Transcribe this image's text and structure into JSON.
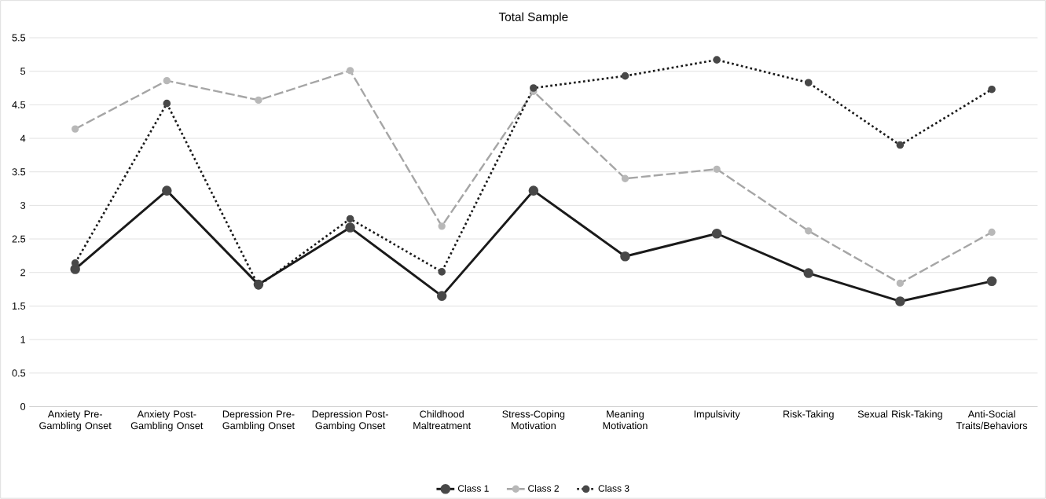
{
  "chart_data": {
    "type": "line",
    "title": "Total Sample",
    "categories": [
      "Anxiety Pre-Gambling Onset",
      "Anxiety Post-Gambling Onset",
      "Depression Pre-Gambling Onset",
      "Depression Post-Gambing Onset",
      "Childhood Maltreatment",
      "Stress-Coping Motivation",
      "Meaning Motivation",
      "Impulsivity",
      "Risk-Taking",
      "Sexual Risk-Taking",
      "Anti-Social Traits/Behaviors"
    ],
    "series": [
      {
        "name": "Class 1",
        "color": "#1a1a1a",
        "line_style": "solid",
        "values": [
          2.05,
          3.22,
          1.82,
          2.67,
          1.65,
          3.22,
          2.24,
          2.58,
          1.99,
          1.57,
          1.87
        ]
      },
      {
        "name": "Class 2",
        "color": "#a6a6a6",
        "line_style": "dashed",
        "values": [
          4.14,
          4.86,
          4.57,
          5.01,
          2.69,
          4.7,
          3.4,
          3.54,
          2.62,
          1.84,
          2.6
        ]
      },
      {
        "name": "Class 3",
        "color": "#1a1a1a",
        "line_style": "dotted",
        "values": [
          2.14,
          4.52,
          1.8,
          2.8,
          2.01,
          4.75,
          4.93,
          5.17,
          4.83,
          3.9,
          4.73
        ]
      }
    ],
    "ylim": [
      0,
      5.5
    ],
    "yticks": [
      0,
      0.5,
      1,
      1.5,
      2,
      2.5,
      3,
      3.5,
      4,
      4.5,
      5,
      5.5
    ],
    "grid": "y",
    "legend": "bottom",
    "marker": "circle"
  }
}
